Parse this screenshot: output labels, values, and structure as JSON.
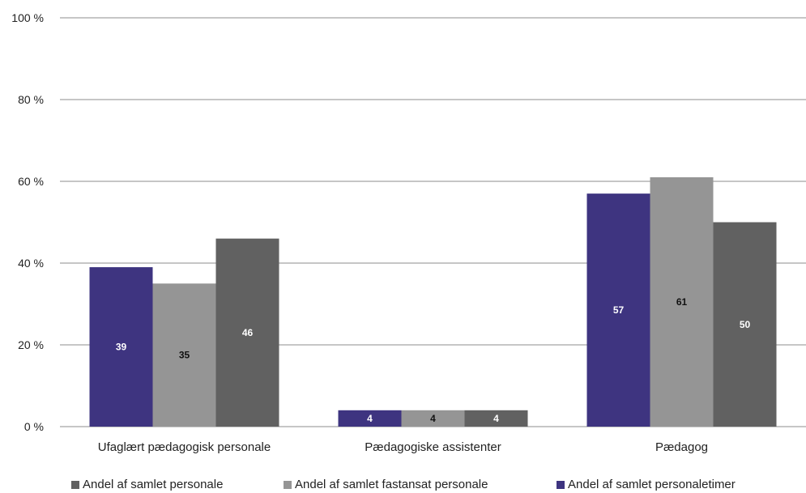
{
  "chart_data": {
    "type": "bar",
    "categories": [
      "Ufaglært pædagogisk personale",
      "Pædagogiske assistenter",
      "Pædagog"
    ],
    "series": [
      {
        "name": "Andel af samlet personaletimer",
        "color": "#3e3480",
        "label_color": "#ffffff",
        "values": [
          39,
          4,
          57
        ]
      },
      {
        "name": "Andel af samlet fastansat personale",
        "color": "#959595",
        "label_color": "#111111",
        "values": [
          35,
          4,
          61
        ]
      },
      {
        "name": "Andel af samlet personale",
        "color": "#616161",
        "label_color": "#ffffff",
        "values": [
          46,
          4,
          50
        ]
      }
    ],
    "ylim": [
      0,
      100
    ],
    "yticks": [
      "0 %",
      "20 %",
      "40 %",
      "60 %",
      "80 %",
      "100 %"
    ],
    "ytick_values": [
      0,
      20,
      40,
      60,
      80,
      100
    ],
    "legend_order": [
      2,
      1,
      0
    ],
    "legend_position": "bottom",
    "grid": true
  }
}
